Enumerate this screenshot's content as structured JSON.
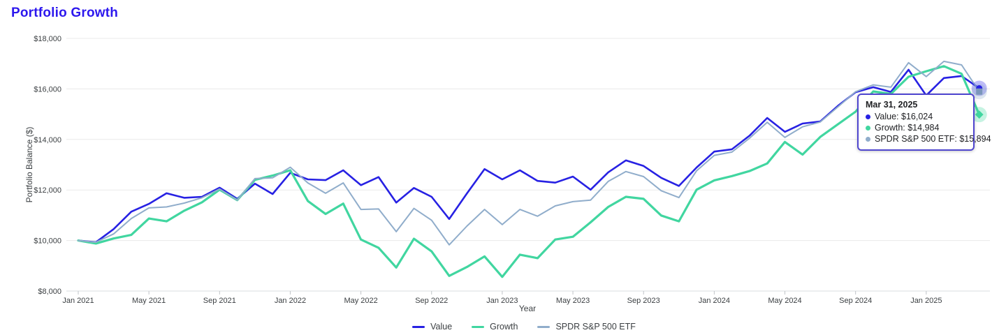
{
  "title": {
    "text": "Portfolio Growth",
    "color": "#2d18ee"
  },
  "axes": {
    "y": {
      "title": "Portfolio Balance ($)",
      "tick_labels": [
        "$8,000",
        "$10,000",
        "$12,000",
        "$14,000",
        "$16,000",
        "$18,000"
      ],
      "min": 8000,
      "max": 18000,
      "step": 2000
    },
    "x": {
      "title": "Year",
      "tick_labels": [
        "Jan 2021",
        "May 2021",
        "Sep 2021",
        "Jan 2022",
        "May 2022",
        "Sep 2022",
        "Jan 2023",
        "May 2023",
        "Sep 2023",
        "Jan 2024",
        "May 2024",
        "Sep 2024",
        "Jan 2025"
      ]
    }
  },
  "legend": {
    "items": [
      {
        "label": "Value",
        "color": "#2721e3"
      },
      {
        "label": "Growth",
        "color": "#41d6a0"
      },
      {
        "label": "SPDR S&P 500 ETF",
        "color": "#90adcb"
      }
    ]
  },
  "tooltip": {
    "title": "Mar 31, 2025",
    "border_color": "#4f46cf",
    "items": [
      {
        "label": "Value",
        "value": "$16,024",
        "color": "#2721e3"
      },
      {
        "label": "Growth",
        "value": "$14,984",
        "color": "#41d6a0"
      },
      {
        "label": "SPDR S&P 500 ETF",
        "value": "$15,894",
        "color": "#90adcb"
      }
    ]
  },
  "chart_data": {
    "type": "line",
    "title": "Portfolio Growth",
    "xlabel": "Year",
    "ylabel": "Portfolio Balance ($)",
    "ylim": [
      8000,
      18000
    ],
    "grid": "horizontal",
    "legend_position": "bottom",
    "highlighted_point": {
      "date": "Mar 31, 2025",
      "x_index": 51
    },
    "x": [
      "Dec 2020",
      "Jan 2021",
      "Feb 2021",
      "Mar 2021",
      "Apr 2021",
      "May 2021",
      "Jun 2021",
      "Jul 2021",
      "Aug 2021",
      "Sep 2021",
      "Oct 2021",
      "Nov 2021",
      "Dec 2021",
      "Jan 2022",
      "Feb 2022",
      "Mar 2022",
      "Apr 2022",
      "May 2022",
      "Jun 2022",
      "Jul 2022",
      "Aug 2022",
      "Sep 2022",
      "Oct 2022",
      "Nov 2022",
      "Dec 2022",
      "Jan 2023",
      "Feb 2023",
      "Mar 2023",
      "Apr 2023",
      "May 2023",
      "Jun 2023",
      "Jul 2023",
      "Aug 2023",
      "Sep 2023",
      "Oct 2023",
      "Nov 2023",
      "Dec 2023",
      "Jan 2024",
      "Feb 2024",
      "Mar 2024",
      "Apr 2024",
      "May 2024",
      "Jun 2024",
      "Jul 2024",
      "Aug 2024",
      "Sep 2024",
      "Oct 2024",
      "Nov 2024",
      "Dec 2024",
      "Jan 2025",
      "Feb 2025",
      "Mar 2025"
    ],
    "series": [
      {
        "name": "Value",
        "color": "#2721e3",
        "width": 2.6,
        "marker": "circle",
        "values": [
          10000,
          9930,
          10450,
          11140,
          11450,
          11870,
          11690,
          11730,
          12090,
          11650,
          12250,
          11840,
          12680,
          12420,
          12390,
          12780,
          12190,
          12510,
          11500,
          12080,
          11730,
          10850,
          11860,
          12830,
          12420,
          12780,
          12360,
          12290,
          12530,
          12010,
          12700,
          13170,
          12950,
          12480,
          12160,
          12890,
          13520,
          13610,
          14150,
          14850,
          14300,
          14630,
          14710,
          15330,
          15870,
          16070,
          15880,
          16760,
          15740,
          16430,
          16510,
          16024
        ]
      },
      {
        "name": "Growth",
        "color": "#41d6a0",
        "width": 3.2,
        "marker": "diamond",
        "values": [
          10000,
          9880,
          10080,
          10220,
          10870,
          10760,
          11180,
          11510,
          12010,
          11600,
          12400,
          12570,
          12780,
          11560,
          11050,
          11460,
          10040,
          9710,
          8930,
          10070,
          9570,
          8600,
          8950,
          9370,
          8560,
          9440,
          9300,
          10040,
          10150,
          10720,
          11330,
          11730,
          11650,
          10990,
          10760,
          12010,
          12380,
          12550,
          12750,
          13050,
          13900,
          13400,
          14100,
          14600,
          15100,
          15900,
          15800,
          16480,
          16700,
          16900,
          16600,
          14984
        ]
      },
      {
        "name": "SPDR S&P 500 ETF",
        "color": "#90adcb",
        "width": 2,
        "marker": "square",
        "values": [
          10000,
          9930,
          10260,
          10870,
          11290,
          11330,
          11480,
          11690,
          12040,
          11600,
          12450,
          12480,
          12900,
          12280,
          11870,
          12280,
          11230,
          11250,
          10350,
          11270,
          10800,
          9830,
          10570,
          11230,
          10630,
          11230,
          10960,
          11370,
          11540,
          11600,
          12340,
          12730,
          12530,
          11970,
          11700,
          12760,
          13370,
          13500,
          14050,
          14680,
          14080,
          14500,
          14690,
          15290,
          15890,
          16160,
          16070,
          17040,
          16490,
          17090,
          16950,
          15894
        ]
      }
    ]
  }
}
